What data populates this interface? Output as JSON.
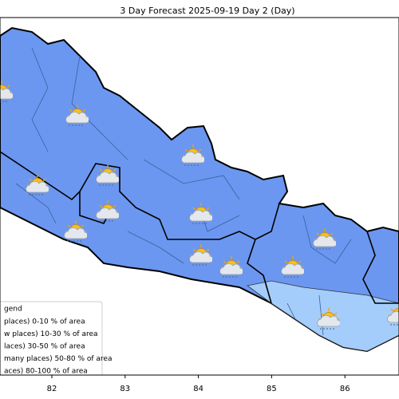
{
  "title": "3 Day Forecast 2025-09-19 Day 2 (Day)",
  "legend": {
    "title": "gend",
    "items": [
      "places)  0-10 % of area",
      "w places) 10-30 % of area",
      "laces) 30-50  % of area",
      "many places) 50-80 % of area",
      "aces) 80-100 % of area"
    ]
  },
  "x_axis": {
    "ticks": [
      82,
      83,
      84,
      85,
      86
    ]
  }
}
